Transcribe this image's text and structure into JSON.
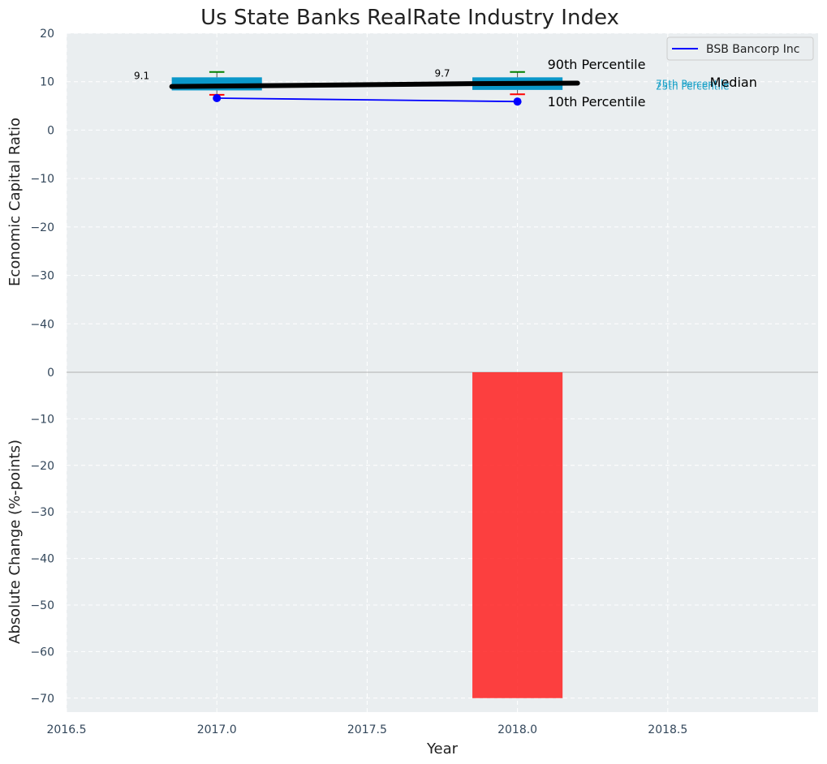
{
  "chart_data": {
    "title": "Us State Banks RealRate Industry Index",
    "xlabel": "Year",
    "x_ticks": [
      "2016.5",
      "2017.0",
      "2017.5",
      "2018.0",
      "2018.5"
    ],
    "xlim": [
      2016.5,
      2019.0
    ],
    "top_panel": {
      "type": "box",
      "ylabel": "Economic Capital Ratio",
      "ylim": [
        -50,
        20
      ],
      "y_ticks": [
        "20",
        "10",
        "0",
        "−10",
        "−20",
        "−30",
        "−40"
      ],
      "grid": true,
      "boxes": [
        {
          "x": 2017.0,
          "p10": 7.3,
          "p25": 8.2,
          "median": 9.1,
          "p75": 10.9,
          "p90": 12.0
        },
        {
          "x": 2018.0,
          "p10": 7.4,
          "p25": 8.3,
          "median": 9.7,
          "p75": 10.9,
          "p90": 12.0
        }
      ],
      "median_line": {
        "x": [
          2016.85,
          2017.2,
          2017.85,
          2018.2
        ],
        "y": [
          9.0,
          9.2,
          9.6,
          9.7
        ]
      },
      "median_labels": [
        {
          "x": 2016.75,
          "y": 10.5,
          "text": "9.1"
        },
        {
          "x": 2017.75,
          "y": 11.0,
          "text": "9.7"
        }
      ],
      "series": [
        {
          "name": "BSB Bancorp Inc",
          "x": [
            2017.0,
            2018.0
          ],
          "y": [
            6.6,
            5.9
          ],
          "color": "#0000ff"
        }
      ],
      "annotations": [
        {
          "text": "90th Percentile",
          "x": 2018.1,
          "y": 13.5,
          "size": "large",
          "color": "#000000"
        },
        {
          "text": "10th Percentile",
          "x": 2018.1,
          "y": 5.8,
          "size": "large",
          "color": "#000000"
        },
        {
          "text": "75th Percentile",
          "x": 2018.46,
          "y": 9.7,
          "size": "small",
          "color": "#19a1c8"
        },
        {
          "text": "25th Percentile",
          "x": 2018.46,
          "y": 9.2,
          "size": "small",
          "color": "#19a1c8"
        },
        {
          "text": "Median",
          "x": 2018.64,
          "y": 9.8,
          "size": "large",
          "color": "#000000"
        }
      ],
      "legend": {
        "location": "top-right",
        "entries": [
          "BSB Bancorp Inc"
        ]
      }
    },
    "bottom_panel": {
      "type": "bar",
      "ylabel": "Absolute Change (%-points)",
      "ylim": [
        -73,
        0
      ],
      "y_ticks": [
        "0",
        "−10",
        "−20",
        "−30",
        "−40",
        "−50",
        "−60",
        "−70"
      ],
      "grid": true,
      "bars": [
        {
          "x": 2018.0,
          "value": -70,
          "color": "#ff2020"
        }
      ]
    },
    "colors": {
      "panel_bg": "#eaeef0",
      "box_fill": "#0a97c9",
      "median_line": "#000000",
      "whisker_top": "#008000",
      "whisker_bottom": "#ff0000",
      "series": "#0000ff",
      "bar": "#ff2020"
    }
  }
}
